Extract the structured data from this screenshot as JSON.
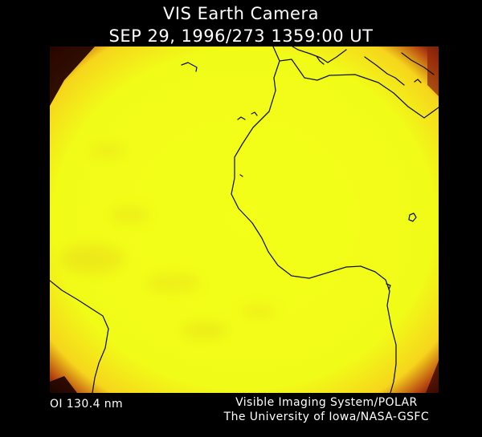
{
  "header": {
    "title": "VIS Earth Camera",
    "timestamp": "SEP 29, 1996/273 1359:00 UT"
  },
  "image": {
    "type": "satellite-image",
    "filter_label": "OI  130.4 nm",
    "colors": {
      "field": "#f2fb1c",
      "edge_glow": "#f7c51a",
      "edge_dark": "#2a0600",
      "coastline": "#111111",
      "background": "#000000"
    }
  },
  "credits": {
    "line1": "Visible Imaging System/POLAR",
    "line2": "The University of Iowa/NASA-GSFC"
  }
}
